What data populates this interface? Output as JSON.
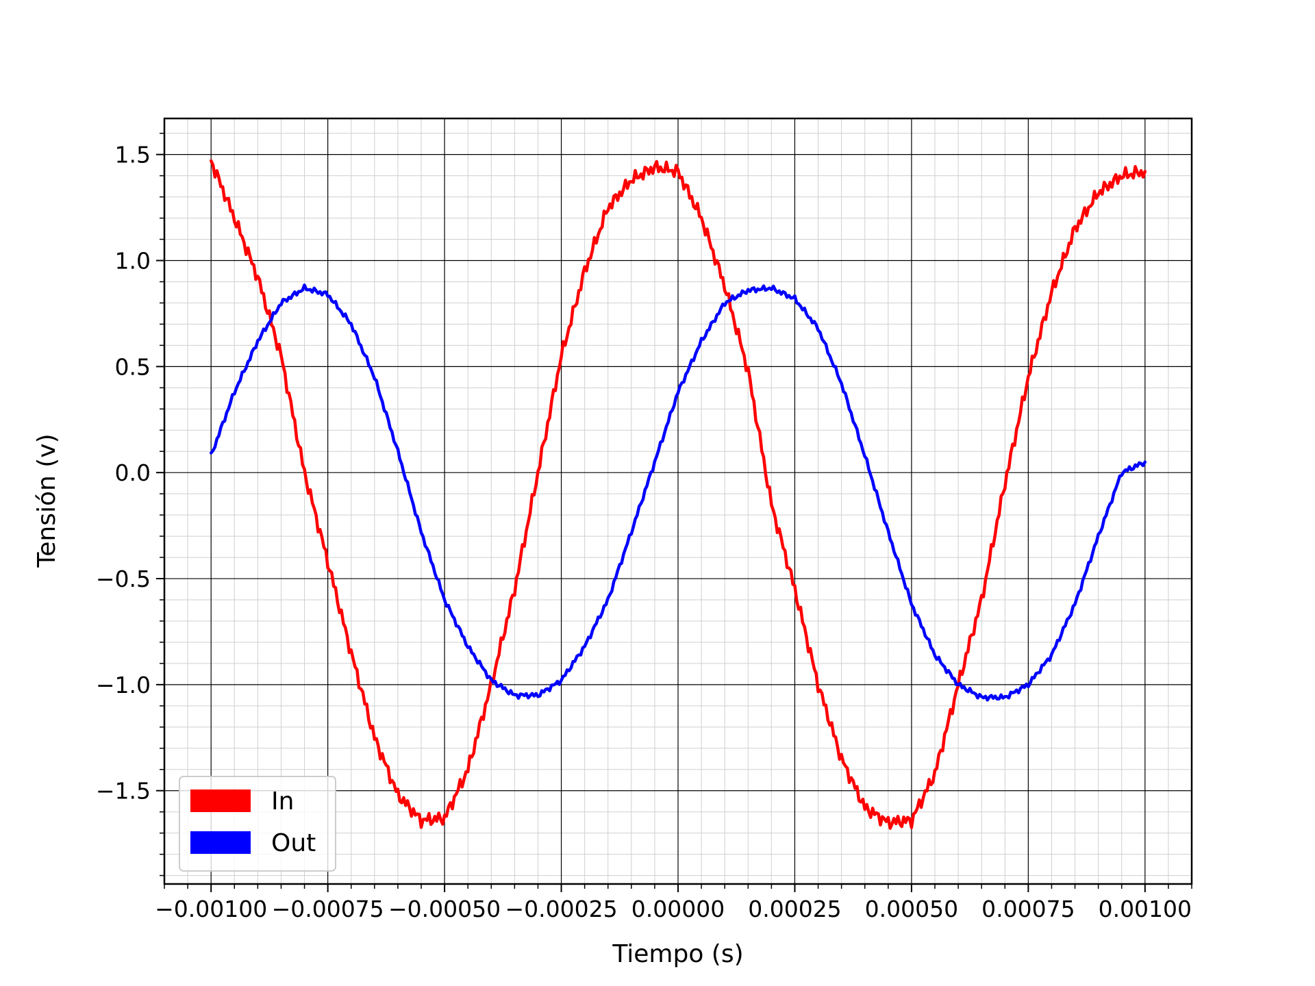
{
  "chart_data": {
    "type": "line",
    "title": "",
    "xlabel": "Tiempo (s)",
    "ylabel": "Tensión (v)",
    "xlim": [
      -0.0011,
      0.0011
    ],
    "ylim": [
      -1.94,
      1.67
    ],
    "x_ticks": [
      -0.001,
      -0.00075,
      -0.0005,
      -0.00025,
      0.0,
      0.00025,
      0.0005,
      0.00075,
      0.001
    ],
    "x_tick_labels": [
      "−0.00100",
      "−0.00075",
      "−0.00050",
      "−0.00025",
      "0.00000",
      "0.00025",
      "0.00050",
      "0.00075",
      "0.00100"
    ],
    "y_ticks": [
      -1.5,
      -1.0,
      -0.5,
      0.0,
      0.5,
      1.0,
      1.5
    ],
    "y_tick_labels": [
      "−1.5",
      "−1.0",
      "−0.5",
      "0.0",
      "0.5",
      "1.0",
      "1.5"
    ],
    "grid": true,
    "minor_grid": true,
    "legend_position": "lower-left",
    "series": [
      {
        "name": "In",
        "color": "#ff0000",
        "x": [
          -0.001,
          -0.00095,
          -0.0009,
          -0.00085,
          -0.0008,
          -0.00075,
          -0.0007,
          -0.00065,
          -0.0006,
          -0.00055,
          -0.0005,
          -0.00045,
          -0.0004,
          -0.00035,
          -0.0003,
          -0.00025,
          -0.0002,
          -0.00015,
          -0.0001,
          -5e-05,
          0.0,
          5e-05,
          0.0001,
          0.00015,
          0.0002,
          0.00025,
          0.0003,
          0.00035,
          0.0004,
          0.00045,
          0.0005,
          0.00055,
          0.0006,
          0.00065,
          0.0007,
          0.00075,
          0.0008,
          0.00085,
          0.0009,
          0.00095,
          0.001
        ],
        "values": [
          1.47,
          1.2,
          0.92,
          0.55,
          0.0,
          -0.42,
          -0.85,
          -1.25,
          -1.52,
          -1.64,
          -1.63,
          -1.4,
          -1.0,
          -0.55,
          0.0,
          0.55,
          0.95,
          1.25,
          1.38,
          1.44,
          1.42,
          1.2,
          0.88,
          0.48,
          -0.15,
          -0.55,
          -1.0,
          -1.35,
          -1.58,
          -1.65,
          -1.64,
          -1.42,
          -1.0,
          -0.6,
          -0.05,
          0.45,
          0.85,
          1.15,
          1.32,
          1.4,
          1.42
        ]
      },
      {
        "name": "Out",
        "color": "#0000ff",
        "x": [
          -0.001,
          -0.00095,
          -0.0009,
          -0.00085,
          -0.0008,
          -0.00075,
          -0.0007,
          -0.00065,
          -0.0006,
          -0.00055,
          -0.0005,
          -0.00045,
          -0.0004,
          -0.00035,
          -0.0003,
          -0.00025,
          -0.0002,
          -0.00015,
          -0.0001,
          -5e-05,
          0.0,
          5e-05,
          0.0001,
          0.00015,
          0.0002,
          0.00025,
          0.0003,
          0.00035,
          0.0004,
          0.00045,
          0.0005,
          0.00055,
          0.0006,
          0.00065,
          0.0007,
          0.00075,
          0.0008,
          0.00085,
          0.0009,
          0.00095,
          0.001
        ],
        "values": [
          0.08,
          0.38,
          0.62,
          0.8,
          0.87,
          0.84,
          0.7,
          0.45,
          0.1,
          -0.28,
          -0.6,
          -0.82,
          -0.98,
          -1.05,
          -1.05,
          -0.98,
          -0.82,
          -0.6,
          -0.28,
          0.05,
          0.38,
          0.62,
          0.8,
          0.86,
          0.87,
          0.82,
          0.68,
          0.42,
          0.08,
          -0.28,
          -0.62,
          -0.86,
          -1.0,
          -1.06,
          -1.06,
          -1.0,
          -0.86,
          -0.62,
          -0.3,
          0.0,
          0.05
        ]
      }
    ]
  }
}
